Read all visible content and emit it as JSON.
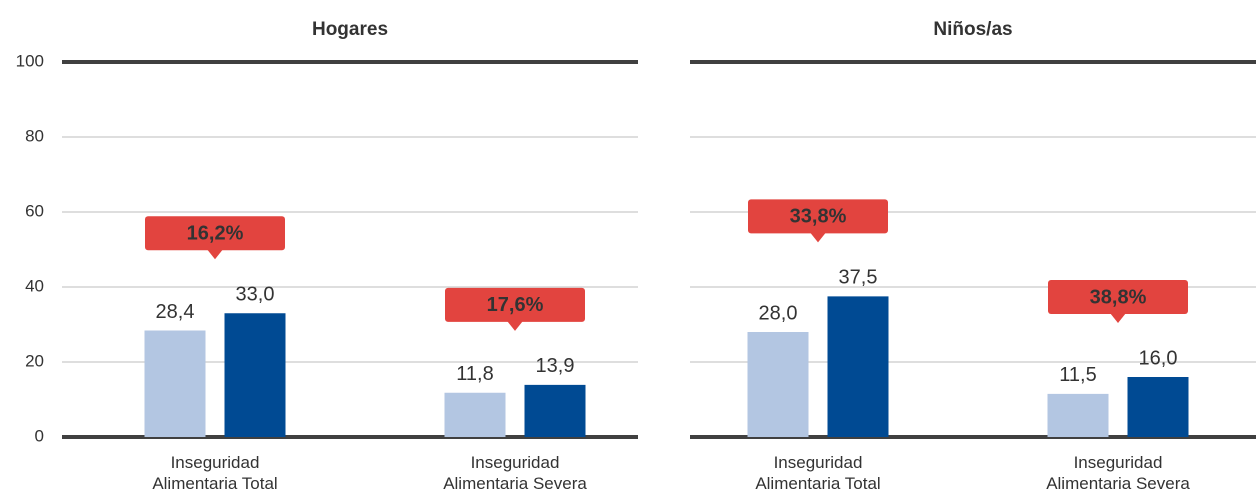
{
  "chart_data": [
    {
      "type": "bar",
      "title": "Hogares",
      "categories": [
        "Inseguridad Alimentaria Total",
        "Inseguridad Alimentaria Severa"
      ],
      "series": [
        {
          "color": "#b3c6e2",
          "values": [
            28.4,
            11.8
          ],
          "value_labels": [
            "28,4",
            "11,8"
          ]
        },
        {
          "color": "#004a93",
          "values": [
            33.0,
            13.9
          ],
          "value_labels": [
            "33,0",
            "13,9"
          ]
        }
      ],
      "annotations": [
        {
          "value": 16.2,
          "label": "16,2%"
        },
        {
          "value": 17.6,
          "label": "17,6%"
        }
      ],
      "annotation_color": "#e2443f",
      "ylim": [
        0,
        100
      ],
      "yticks": [
        0,
        20,
        40,
        60,
        80,
        100
      ],
      "grid": true,
      "show_tick_labels": true
    },
    {
      "type": "bar",
      "title": "Niños/as",
      "categories": [
        "Inseguridad Alimentaria Total",
        "Inseguridad Alimentaria Severa"
      ],
      "series": [
        {
          "color": "#b3c6e2",
          "values": [
            28.0,
            11.5
          ],
          "value_labels": [
            "28,0",
            "11,5"
          ]
        },
        {
          "color": "#004a93",
          "values": [
            37.5,
            16.0
          ],
          "value_labels": [
            "37,5",
            "16,0"
          ]
        }
      ],
      "annotations": [
        {
          "value": 33.8,
          "label": "33,8%"
        },
        {
          "value": 38.8,
          "label": "38,8%"
        }
      ],
      "annotation_color": "#e2443f",
      "ylim": [
        0,
        100
      ],
      "yticks": [
        0,
        20,
        40,
        60,
        80,
        100
      ],
      "grid": true,
      "show_tick_labels": false
    }
  ]
}
